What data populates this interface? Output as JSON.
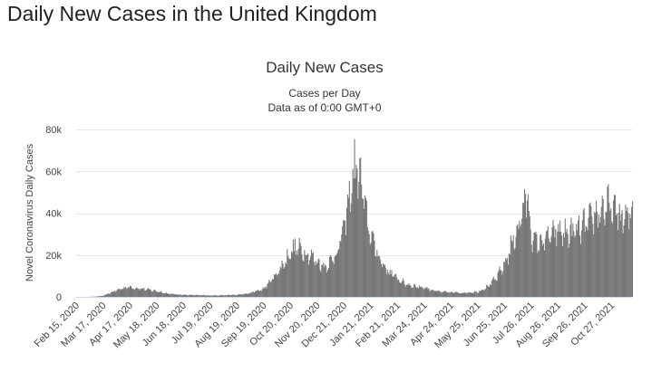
{
  "page": {
    "title": "Daily New Cases in the United Kingdom"
  },
  "chart_data": {
    "type": "bar",
    "title": "Daily New Cases",
    "subtitle_lines": [
      "Cases per Day",
      "Data as of 0:00 GMT+0"
    ],
    "xlabel": "",
    "ylabel": "Novel Coronavirus Daily Cases",
    "ylim": [
      0,
      80000
    ],
    "y_ticks": [
      0,
      20000,
      40000,
      60000,
      80000
    ],
    "y_tick_labels": [
      "0",
      "20k",
      "40k",
      "60k",
      "80k"
    ],
    "x_start": "2020-02-15",
    "x_end": "2021-11-20",
    "x_tick_labels": [
      "Feb 15, 2020",
      "Mar 17, 2020",
      "Apr 17, 2020",
      "May 18, 2020",
      "Jun 18, 2020",
      "Jul 19, 2020",
      "Aug 19, 2020",
      "Sep 19, 2020",
      "Oct 20, 2020",
      "Nov 20, 2020",
      "Dec 21, 2020",
      "Jan 21, 2021",
      "Feb 21, 2021",
      "Mar 24, 2021",
      "Apr 24, 2021",
      "May 25, 2021",
      "Jun 25, 2021",
      "Jul 26, 2021",
      "Aug 26, 2021",
      "Sep 26, 2021",
      "Oct 27, 2021"
    ],
    "grid": true,
    "bar_color": "#777777",
    "x": [
      "2020-02-15",
      "2020-03-01",
      "2020-03-17",
      "2020-03-31",
      "2020-04-10",
      "2020-04-17",
      "2020-04-30",
      "2020-05-18",
      "2020-06-01",
      "2020-06-18",
      "2020-07-19",
      "2020-08-19",
      "2020-09-01",
      "2020-09-19",
      "2020-10-01",
      "2020-10-10",
      "2020-10-20",
      "2020-10-25",
      "2020-11-01",
      "2020-11-10",
      "2020-11-20",
      "2020-11-28",
      "2020-12-05",
      "2020-12-14",
      "2020-12-21",
      "2020-12-26",
      "2020-12-29",
      "2021-01-01",
      "2021-01-04",
      "2021-01-08",
      "2021-01-12",
      "2021-01-16",
      "2021-01-21",
      "2021-01-28",
      "2021-02-05",
      "2021-02-12",
      "2021-02-21",
      "2021-03-01",
      "2021-03-10",
      "2021-03-24",
      "2021-04-10",
      "2021-04-24",
      "2021-05-10",
      "2021-05-25",
      "2021-06-05",
      "2021-06-15",
      "2021-06-25",
      "2021-07-05",
      "2021-07-12",
      "2021-07-17",
      "2021-07-21",
      "2021-07-26",
      "2021-08-01",
      "2021-08-10",
      "2021-08-18",
      "2021-08-26",
      "2021-09-05",
      "2021-09-15",
      "2021-09-26",
      "2021-10-05",
      "2021-10-12",
      "2021-10-20",
      "2021-10-27",
      "2021-11-05",
      "2021-11-12",
      "2021-11-20"
    ],
    "values": [
      0,
      50,
      500,
      3000,
      4500,
      4800,
      4000,
      2800,
      1500,
      1000,
      700,
      1000,
      1600,
      4000,
      10000,
      15000,
      22000,
      24000,
      23000,
      21000,
      17000,
      15000,
      17000,
      23000,
      35000,
      45000,
      55000,
      60000,
      65000,
      58000,
      50000,
      38000,
      30000,
      22000,
      15000,
      12000,
      9000,
      6500,
      5500,
      4500,
      2500,
      2200,
      2000,
      2500,
      5000,
      9000,
      16000,
      28000,
      36000,
      44000,
      50000,
      30000,
      26000,
      28000,
      30000,
      32000,
      31000,
      32000,
      35000,
      38000,
      42000,
      44000,
      43000,
      40000,
      38000,
      41000
    ]
  }
}
